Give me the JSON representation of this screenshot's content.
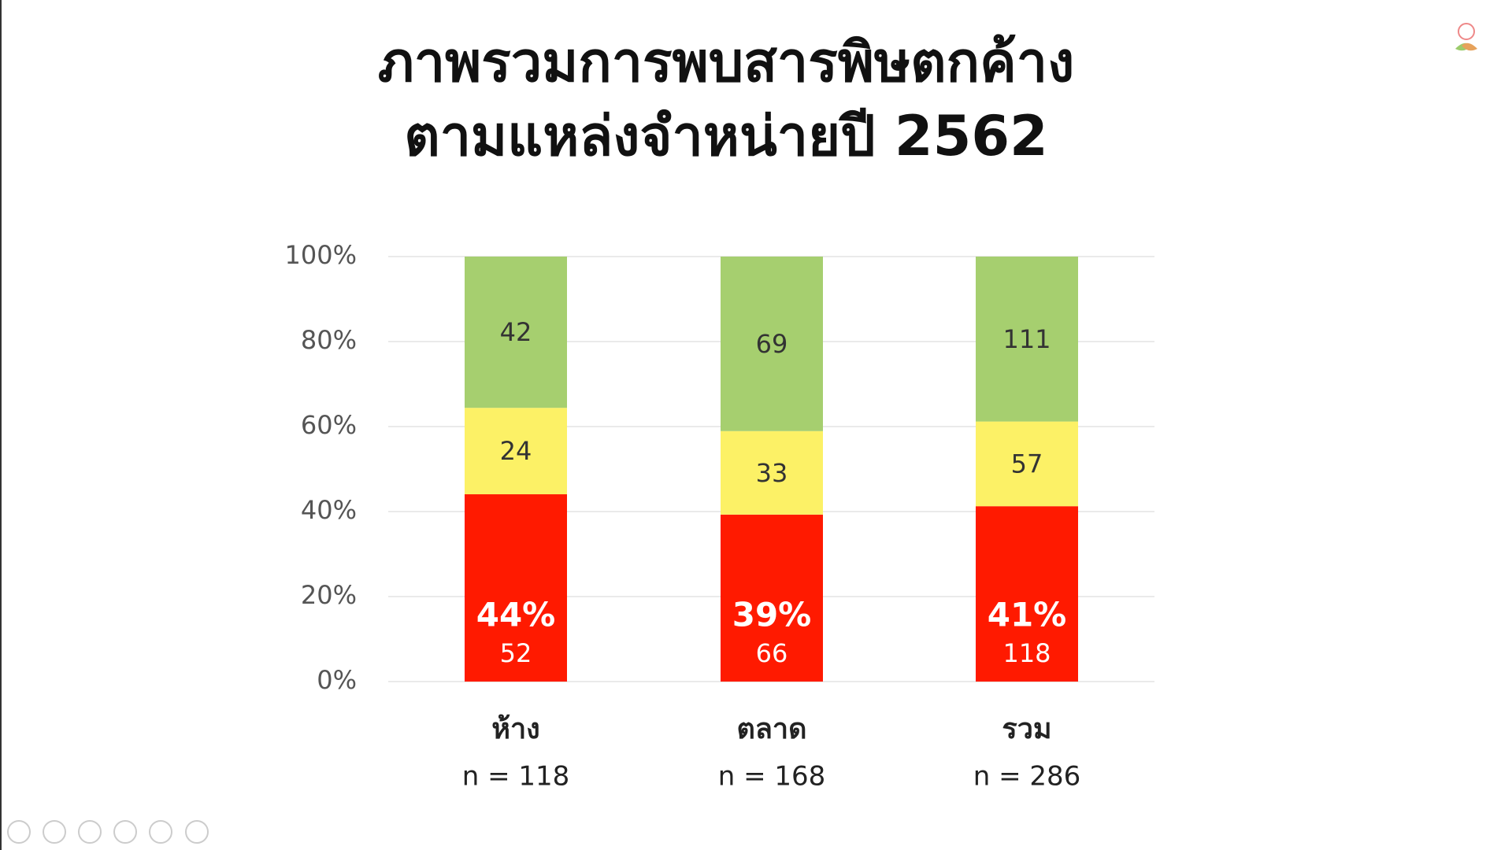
{
  "chart_data": {
    "type": "stacked_bar_percent",
    "title_lines": [
      "ภาพรวมการพบสารพิษตกค้าง",
      "ตามแหล่งจำหน่ายปี 2562"
    ],
    "categories": [
      "ห้าง",
      "ตลาด",
      "รวม"
    ],
    "category_notes": [
      "n = 118",
      "n = 168",
      "n = 286"
    ],
    "series": [
      {
        "color": "#ff1a00",
        "values": [
          44.07,
          39.29,
          41.26
        ],
        "value_labels": [
          "44%",
          "39%",
          "41%"
        ],
        "counts": [
          52,
          66,
          118
        ]
      },
      {
        "color": "#fcf166",
        "values": [
          20.34,
          19.64,
          19.93
        ],
        "counts": [
          24,
          33,
          57
        ]
      },
      {
        "color": "#a6cf6f",
        "values": [
          35.59,
          41.07,
          38.81
        ],
        "counts": [
          42,
          69,
          111
        ]
      }
    ],
    "ylim": [
      0,
      100
    ],
    "yticks": [
      {
        "value": 0,
        "label": "0%"
      },
      {
        "value": 20,
        "label": "20%"
      },
      {
        "value": 40,
        "label": "40%"
      },
      {
        "value": 60,
        "label": "60%"
      },
      {
        "value": 80,
        "label": "80%"
      },
      {
        "value": 100,
        "label": "100%"
      }
    ],
    "grid": true
  }
}
